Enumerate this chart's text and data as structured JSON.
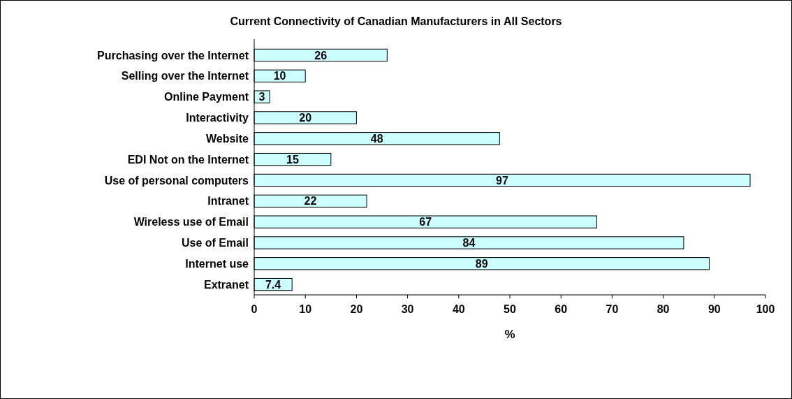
{
  "chart_data": {
    "type": "bar",
    "orientation": "horizontal",
    "title": "Current Connectivity of Canadian Manufacturers in All Sectors",
    "xlabel": "%",
    "categories": [
      "Purchasing over the Internet",
      "Selling over the Internet",
      "Online Payment",
      "Interactivity",
      "Website",
      "EDI Not on the Internet",
      "Use of personal computers",
      "Intranet",
      "Wireless use of Email",
      "Use of Email",
      "Internet use",
      "Extranet"
    ],
    "values": [
      26,
      10,
      3,
      20,
      48,
      15,
      97,
      22,
      67,
      84,
      89,
      7.4
    ],
    "color": "#ccffff",
    "xlim": [
      0,
      100
    ],
    "xticks": [
      0,
      10,
      20,
      30,
      40,
      50,
      60,
      70,
      80,
      90,
      100
    ],
    "data_labels": true
  }
}
